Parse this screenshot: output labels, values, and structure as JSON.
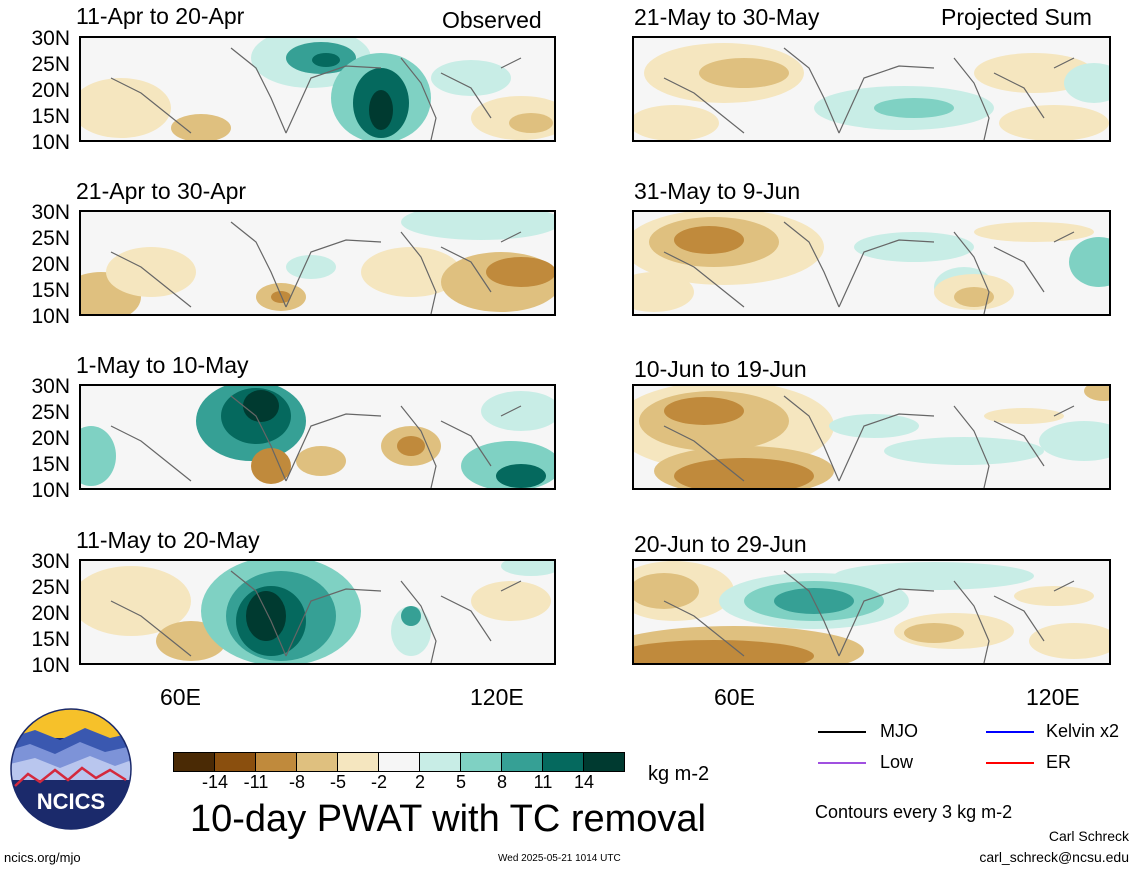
{
  "header": {
    "observed_label": "Observed",
    "projected_label": "Projected Sum"
  },
  "panels_left": [
    {
      "title": "11-Apr to 20-Apr"
    },
    {
      "title": "21-Apr to 30-Apr"
    },
    {
      "title": "1-May to 10-May"
    },
    {
      "title": "11-May to 20-May"
    }
  ],
  "panels_right": [
    {
      "title": "21-May to 30-May"
    },
    {
      "title": "31-May to 9-Jun"
    },
    {
      "title": "10-Jun to 19-Jun"
    },
    {
      "title": "20-Jun to 29-Jun"
    }
  ],
  "y_ticks": [
    "30N",
    "25N",
    "20N",
    "15N",
    "10N"
  ],
  "x_ticks": [
    "60E",
    "120E"
  ],
  "colorbar": {
    "colors": [
      "#4a2a05",
      "#8a4f0e",
      "#c08a3c",
      "#dfc07f",
      "#f5e6bf",
      "#f6f6f6",
      "#c8ede6",
      "#7fd1c3",
      "#36a095",
      "#05695e",
      "#003a30"
    ],
    "labels": [
      "-14",
      "-11",
      "-8",
      "-5",
      "-2",
      "2",
      "5",
      "8",
      "11",
      "14"
    ],
    "units": "kg m-2"
  },
  "chart_title": "10-day PWAT with TC removal",
  "legend": {
    "items": [
      {
        "label": "MJO",
        "color": "#000000"
      },
      {
        "label": "Kelvin x2",
        "color": "#0000ff"
      },
      {
        "label": "Low",
        "color": "#a050e0"
      },
      {
        "label": "ER",
        "color": "#ff0000"
      }
    ],
    "contour_note": "Contours every 3 kg m-2"
  },
  "logo": {
    "text": "NCICS"
  },
  "footer": {
    "url": "ncics.org/mjo",
    "timestamp": "Wed 2025-05-21 1014 UTC",
    "author": "Carl Schreck",
    "email": "carl_schreck@ncsu.edu"
  }
}
